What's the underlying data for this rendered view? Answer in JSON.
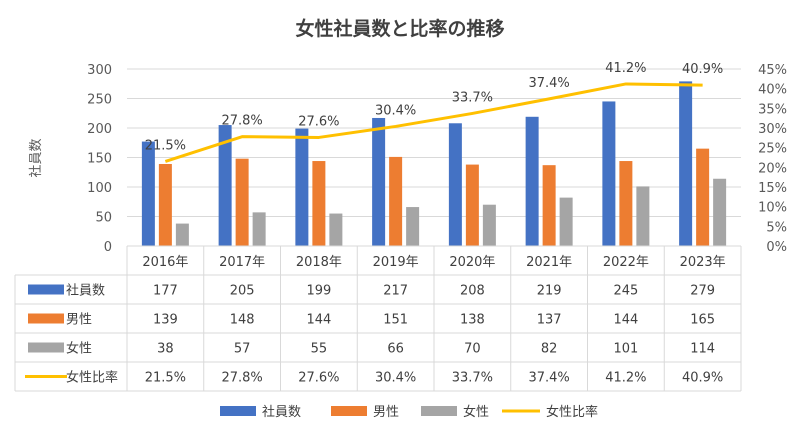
{
  "chart_data": {
    "type": "bar",
    "title": "女性社員数と比率の推移",
    "ylabel": "社員数",
    "categories": [
      "2016年",
      "2017年",
      "2018年",
      "2019年",
      "2020年",
      "2021年",
      "2022年",
      "2023年"
    ],
    "ylim": [
      0,
      300
    ],
    "yticks": [
      "0",
      "50",
      "100",
      "150",
      "200",
      "250",
      "300"
    ],
    "y2lim": [
      0,
      45
    ],
    "y2ticks": [
      "0%",
      "5%",
      "10%",
      "15%",
      "20%",
      "25%",
      "30%",
      "35%",
      "40%",
      "45%"
    ],
    "series": [
      {
        "name": "社員数",
        "type": "bar",
        "axis": "left",
        "color": "#4472C4",
        "values": [
          177,
          205,
          199,
          217,
          208,
          219,
          245,
          279
        ]
      },
      {
        "name": "男性",
        "type": "bar",
        "axis": "left",
        "color": "#ED7D31",
        "values": [
          139,
          148,
          144,
          151,
          138,
          137,
          144,
          165
        ]
      },
      {
        "name": "女性",
        "type": "bar",
        "axis": "left",
        "color": "#A5A5A5",
        "values": [
          38,
          57,
          55,
          66,
          70,
          82,
          101,
          114
        ]
      },
      {
        "name": "女性比率",
        "type": "line",
        "axis": "right",
        "color": "#FFC000",
        "values": [
          21.5,
          27.8,
          27.6,
          30.4,
          33.7,
          37.4,
          41.2,
          40.9
        ],
        "labels": [
          "21.5%",
          "27.8%",
          "27.6%",
          "30.4%",
          "33.7%",
          "37.4%",
          "41.2%",
          "40.9%"
        ]
      }
    ],
    "table": {
      "rows": [
        {
          "label": "社員数",
          "values": [
            "177",
            "205",
            "199",
            "217",
            "208",
            "219",
            "245",
            "279"
          ]
        },
        {
          "label": "男性",
          "values": [
            "139",
            "148",
            "144",
            "151",
            "138",
            "137",
            "144",
            "165"
          ]
        },
        {
          "label": "女性",
          "values": [
            "38",
            "57",
            "55",
            "66",
            "70",
            "82",
            "101",
            "114"
          ]
        },
        {
          "label": "女性比率",
          "values": [
            "21.5%",
            "27.8%",
            "27.6%",
            "30.4%",
            "33.7%",
            "37.4%",
            "41.2%",
            "40.9%"
          ]
        }
      ]
    },
    "legend": [
      "社員数",
      "男性",
      "女性",
      "女性比率"
    ],
    "legend_position": "bottom"
  }
}
